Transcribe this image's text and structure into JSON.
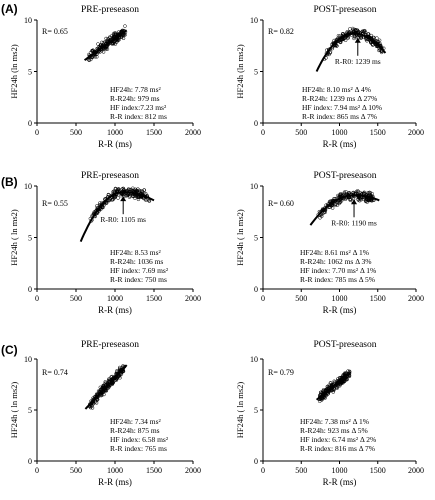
{
  "chart_data": [
    {
      "type": "scatter",
      "panel": "(A)",
      "title": "PRE-preseason",
      "xlabel": "R-R (ms)",
      "ylabel": "HF24h (ln ms2)",
      "xlim": [
        0,
        2000
      ],
      "ylim": [
        0,
        10
      ],
      "xticks": [
        "0",
        "500",
        "1000",
        "1500",
        "2000"
      ],
      "yticks": [
        "0",
        "5",
        "10"
      ],
      "r_label": "R= 0.65",
      "fit": "linear",
      "fit_line": [
        [
          610,
          6.1
        ],
        [
          1150,
          9.0
        ]
      ],
      "cloud": {
        "x_range": [
          600,
          1180
        ],
        "center": [
          950,
          8.0
        ],
        "n": 220,
        "curve": "linear"
      },
      "arrow_label": "",
      "stats": [
        "HF24h: 7.78 ms²",
        "R-R24h: 979 ms",
        "HF index:7.23 ms²",
        "R-R index: 812 ms"
      ]
    },
    {
      "type": "scatter",
      "panel": "",
      "title": "POST-preseason",
      "xlabel": "R-R (ms)",
      "ylabel": "HF24h (ln ms2)",
      "xlim": [
        0,
        2000
      ],
      "ylim": [
        0,
        10
      ],
      "xticks": [
        "0",
        "500",
        "1000",
        "1500",
        "2000"
      ],
      "yticks": [
        "0",
        "5",
        "10"
      ],
      "r_label": "R= 0.82",
      "fit": "quadratic",
      "fit_line": [
        [
          700,
          5.0
        ],
        [
          1180,
          8.7
        ],
        [
          1600,
          6.8
        ]
      ],
      "cloud": {
        "x_range": [
          680,
          1680
        ],
        "center": [
          1180,
          8.0
        ],
        "n": 240,
        "curve": "quadratic"
      },
      "arrow_label": "R-R0: 1239 ms",
      "arrow_x": 1239,
      "stats": [
        "HF24h: 8.10 ms² Δ 4%",
        "R-R24h: 1239 ms Δ 27%",
        "HF index: 7.94 ms² Δ 10%",
        "R-R index: 865 ms Δ 7%"
      ]
    },
    {
      "type": "scatter",
      "panel": "(B)",
      "title": "PRE-preseason",
      "xlabel": "R-R (ms)",
      "ylabel": "HF24h ( ln ms2)",
      "xlim": [
        0,
        2000
      ],
      "ylim": [
        0,
        10
      ],
      "xticks": [
        "0",
        "500",
        "1000",
        "1500",
        "2000"
      ],
      "yticks": [
        "0",
        "5",
        "10"
      ],
      "r_label": "R= 0.55",
      "fit": "quadratic",
      "fit_line": [
        [
          560,
          4.6
        ],
        [
          1105,
          9.4
        ],
        [
          1500,
          8.6
        ]
      ],
      "cloud": {
        "x_range": [
          570,
          1520
        ],
        "center": [
          1100,
          8.4
        ],
        "n": 240,
        "curve": "quadratic"
      },
      "arrow_label": "R-R0: 1105 ms",
      "arrow_x": 1105,
      "stats": [
        "HF24h: 8.53 ms²",
        "R-R24h: 1036 ms",
        "HF index: 7.69 ms²",
        "R-R index: 750 ms"
      ]
    },
    {
      "type": "scatter",
      "panel": "",
      "title": "POST-preseason",
      "xlabel": "R-R (ms)",
      "ylabel": "HF24h ( ln ms2)",
      "xlim": [
        0,
        2000
      ],
      "ylim": [
        0,
        10
      ],
      "xticks": [
        "0",
        "500",
        "1000",
        "1500",
        "2000"
      ],
      "yticks": [
        "0",
        "5",
        "10"
      ],
      "r_label": "R= 0.60",
      "fit": "quadratic",
      "fit_line": [
        [
          620,
          6.2
        ],
        [
          1190,
          9.1
        ],
        [
          1520,
          8.6
        ]
      ],
      "cloud": {
        "x_range": [
          600,
          1540
        ],
        "center": [
          1150,
          8.5
        ],
        "n": 240,
        "curve": "quadratic"
      },
      "arrow_label": "R-R0: 1190 ms",
      "arrow_x": 1190,
      "stats": [
        "HF24h: 8.61 ms² Δ 1%",
        "R-R24h: 1062 ms Δ 3%",
        "HF index: 7.70 ms² Δ 1%",
        "R-R index: 785 ms Δ 5%"
      ]
    },
    {
      "type": "scatter",
      "panel": "(C)",
      "title": "PRE-preseason",
      "xlabel": "R-R (ms)",
      "ylabel": "HF24h ( ln ms2)",
      "xlim": [
        0,
        2000
      ],
      "ylim": [
        0,
        10
      ],
      "xticks": [
        "0",
        "500",
        "1000",
        "1500",
        "2000"
      ],
      "yticks": [
        "0",
        "5",
        "10"
      ],
      "r_label": "R= 0.74",
      "fit": "linear",
      "fit_line": [
        [
          620,
          5.1
        ],
        [
          1150,
          9.4
        ]
      ],
      "cloud": {
        "x_range": [
          600,
          1180
        ],
        "center": [
          880,
          7.0
        ],
        "n": 220,
        "curve": "linear"
      },
      "arrow_label": "",
      "stats": [
        "HF24h: 7.34 ms²",
        "R-R24h: 875 ms",
        "HF index: 6.58 ms²",
        "R-R index: 765 ms"
      ]
    },
    {
      "type": "scatter",
      "panel": "",
      "title": "POST-preseason",
      "xlabel": "R-R (ms)",
      "ylabel": "HF24h ( ln ms2)",
      "xlim": [
        0,
        2000
      ],
      "ylim": [
        0,
        10
      ],
      "xticks": [
        "0",
        "500",
        "1000",
        "1500",
        "2000"
      ],
      "yticks": [
        "0",
        "5",
        "10"
      ],
      "r_label": "R= 0.79",
      "fit": "linear",
      "fit_line": [
        [
          700,
          6.0
        ],
        [
          1150,
          8.7
        ]
      ],
      "cloud": {
        "x_range": [
          680,
          1180
        ],
        "center": [
          920,
          7.4
        ],
        "n": 220,
        "curve": "linear"
      },
      "arrow_label": "",
      "stats": [
        "HF24h: 7.38 ms² Δ 1%",
        "R-R24h: 923 ms Δ 5%",
        "HF index: 6.74 ms² Δ 2%",
        "R-R index: 816 ms Δ 7%"
      ]
    }
  ]
}
